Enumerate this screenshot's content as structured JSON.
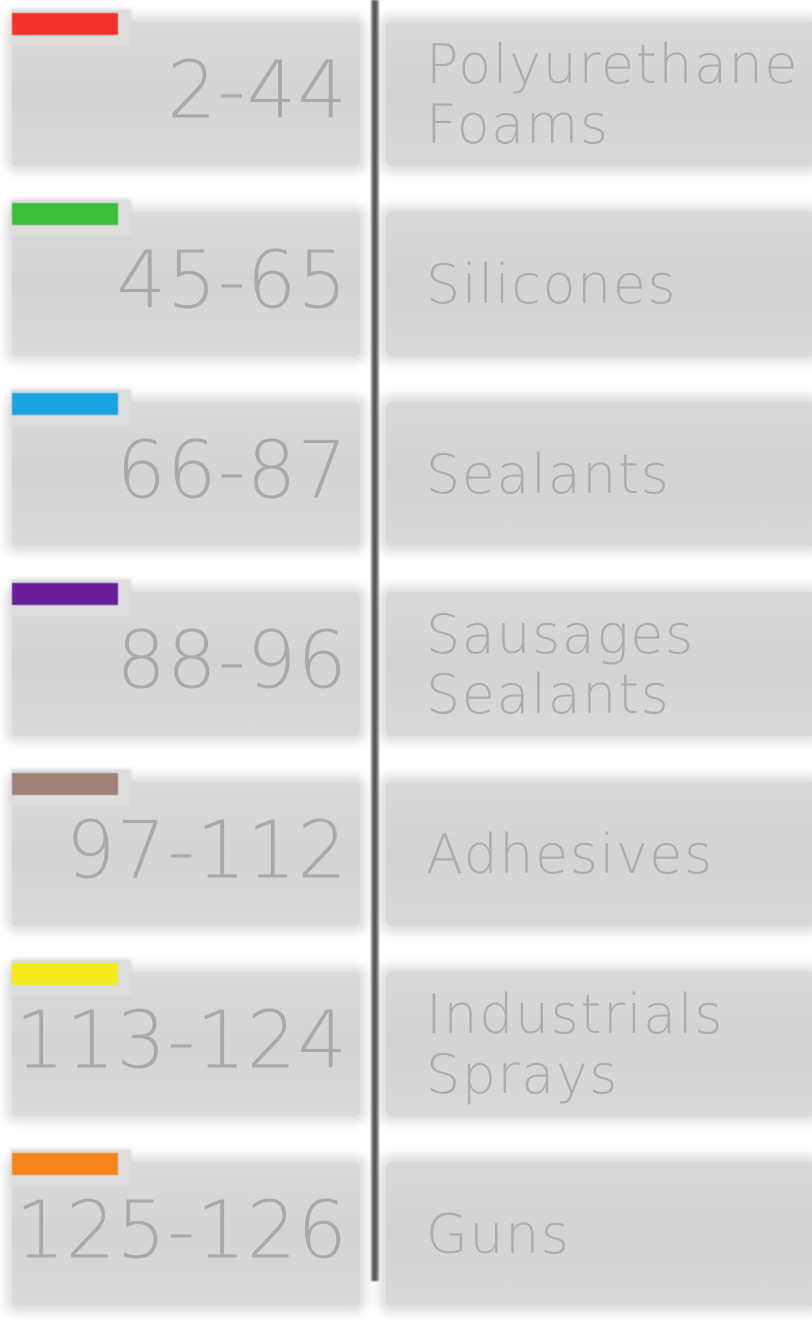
{
  "index": {
    "entries": [
      {
        "color": "#f2322b",
        "pages": "2-44",
        "category": "Polyurethane\nFoams"
      },
      {
        "color": "#3bbd3b",
        "pages": "45-65",
        "category": "Silicones"
      },
      {
        "color": "#1aa3e0",
        "pages": "66-87",
        "category": "Sealants"
      },
      {
        "color": "#6a1f9a",
        "pages": "88-96",
        "category": "Sausages\nSealants"
      },
      {
        "color": "#9e8279",
        "pages": "97-112",
        "category": "Adhesives"
      },
      {
        "color": "#f5ea1c",
        "pages": "113-124",
        "category": "Industrials\nSprays"
      },
      {
        "color": "#f6841a",
        "pages": "125-126",
        "category": "Guns"
      }
    ]
  }
}
